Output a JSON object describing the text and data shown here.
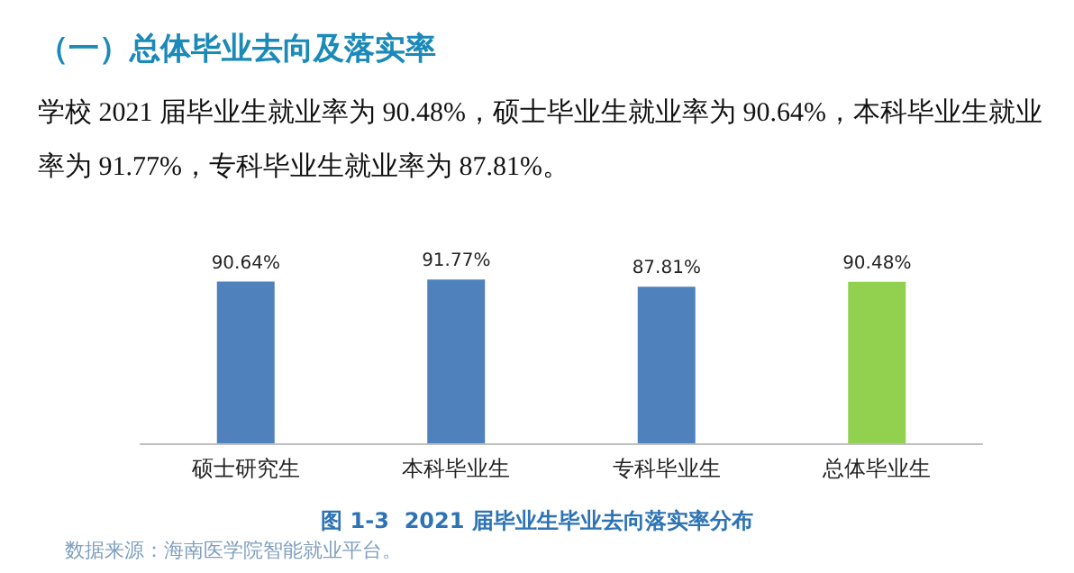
{
  "chart_data": {
    "type": "bar",
    "title": "（一）总体毕业去向及落实率",
    "subtitle": "学校 2021 届毕业生就业率为 90.48%，硕士毕业生就业率为 90.64%，本科毕业生就业率为 91.77%，专科毕业生就业率为 87.81%。",
    "categories": [
      "硕士研究生",
      "本科毕业生",
      "专科毕业生",
      "总体毕业生"
    ],
    "values": [
      90.64,
      91.77,
      87.81,
      90.48
    ],
    "value_labels": [
      "90.64%",
      "91.77%",
      "87.81%",
      "90.48%"
    ],
    "colors": [
      "#4f81bd",
      "#4f81bd",
      "#4f81bd",
      "#92d050"
    ],
    "annotations": [
      "图 1-3  2021 届毕业生毕业去向落实率分布",
      "数据来源：海南医学院智能就业平台。"
    ]
  }
}
